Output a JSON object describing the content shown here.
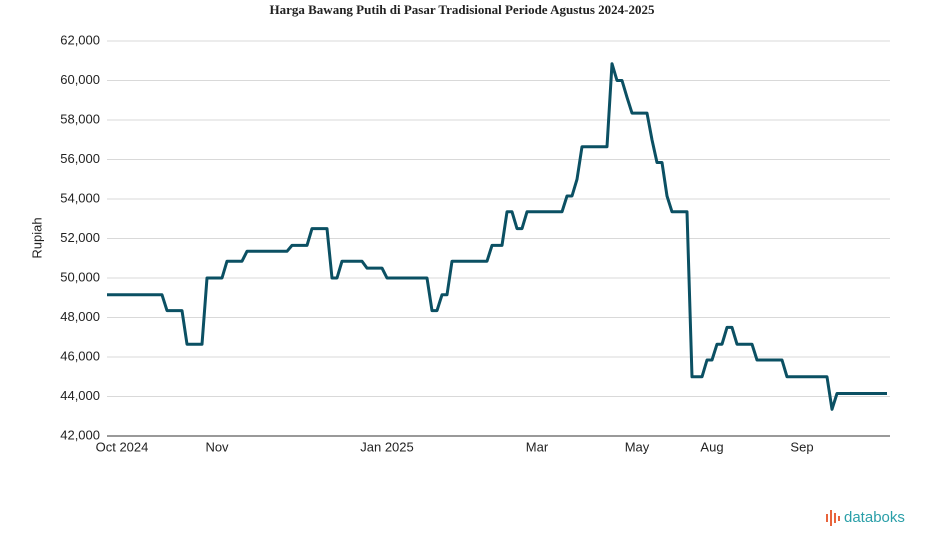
{
  "chart_data": {
    "type": "line",
    "title": "Harga Bawang Putih di Pasar Tradisional Periode Agustus 2024-2025",
    "y_label": "Rupiah",
    "categories": [
      null,
      null,
      null,
      "Oct 2024",
      null,
      null,
      null,
      null,
      null,
      null,
      null,
      null,
      null,
      null,
      null,
      null,
      null,
      null,
      null,
      null,
      null,
      null,
      "Nov",
      null,
      null,
      null,
      null,
      null,
      null,
      null,
      null,
      null,
      null,
      null,
      null,
      null,
      null,
      null,
      null,
      null,
      null,
      null,
      null,
      null,
      null,
      null,
      null,
      null,
      null,
      null,
      null,
      null,
      null,
      null,
      null,
      null,
      "Jan 2025",
      null,
      null,
      null,
      null,
      null,
      null,
      null,
      null,
      null,
      null,
      null,
      null,
      null,
      null,
      null,
      null,
      null,
      null,
      null,
      null,
      null,
      null,
      null,
      null,
      null,
      null,
      null,
      null,
      null,
      "Mar",
      null,
      null,
      null,
      null,
      null,
      null,
      null,
      null,
      null,
      null,
      null,
      null,
      null,
      null,
      null,
      null,
      null,
      null,
      null,
      "May",
      null,
      null,
      null,
      null,
      null,
      null,
      null,
      null,
      null,
      null,
      null,
      null,
      null,
      null,
      "Aug",
      null,
      null,
      null,
      null,
      null,
      null,
      null,
      null,
      null,
      null,
      null,
      null,
      null,
      null,
      null,
      null,
      null,
      "Sep",
      null,
      null,
      null,
      null,
      null,
      null,
      null,
      null,
      null,
      null,
      null,
      null,
      null,
      null,
      null,
      null,
      null
    ],
    "series": [
      {
        "name": "Rupiah",
        "color": "#0b5063",
        "values": [
          49150,
          49150,
          49150,
          49150,
          49150,
          49150,
          49150,
          49150,
          49150,
          49150,
          49150,
          49150,
          48350,
          48350,
          48350,
          48350,
          46650,
          46650,
          46650,
          46650,
          50000,
          50000,
          50000,
          50000,
          50850,
          50850,
          50850,
          50850,
          51350,
          51350,
          51350,
          51350,
          51350,
          51350,
          51350,
          51350,
          51350,
          51650,
          51650,
          51650,
          51650,
          52500,
          52500,
          52500,
          52500,
          50000,
          50000,
          50850,
          50850,
          50850,
          50850,
          50850,
          50500,
          50500,
          50500,
          50500,
          50000,
          50000,
          50000,
          50000,
          50000,
          50000,
          50000,
          50000,
          50000,
          48350,
          48350,
          49150,
          49150,
          50850,
          50850,
          50850,
          50850,
          50850,
          50850,
          50850,
          50850,
          51650,
          51650,
          51650,
          53350,
          53350,
          52500,
          52500,
          53350,
          53350,
          53350,
          53350,
          53350,
          53350,
          53350,
          53350,
          54150,
          54150,
          55000,
          56650,
          56650,
          56650,
          56650,
          56650,
          56650,
          60850,
          60000,
          60000,
          59150,
          58350,
          58350,
          58350,
          58350,
          57000,
          55850,
          55850,
          54150,
          53350,
          53350,
          53350,
          53350,
          45000,
          45000,
          45000,
          45850,
          45850,
          46650,
          46650,
          47500,
          47500,
          46650,
          46650,
          46650,
          46650,
          45850,
          45850,
          45850,
          45850,
          45850,
          45850,
          45000,
          45000,
          45000,
          45000,
          45000,
          45000,
          45000,
          45000,
          45000,
          43350,
          44150,
          44150,
          44150,
          44150,
          44150,
          44150,
          44150,
          44150,
          44150,
          44150,
          44150
        ]
      }
    ],
    "ylim": [
      42000,
      62000
    ],
    "yticks": [
      {
        "value": 42000,
        "label": "42,000"
      },
      {
        "value": 44000,
        "label": "44,000"
      },
      {
        "value": 46000,
        "label": "46,000"
      },
      {
        "value": 48000,
        "label": "48,000"
      },
      {
        "value": 50000,
        "label": "50,000"
      },
      {
        "value": 52000,
        "label": "52,000"
      },
      {
        "value": 54000,
        "label": "54,000"
      },
      {
        "value": 56000,
        "label": "56,000"
      },
      {
        "value": 58000,
        "label": "58,000"
      },
      {
        "value": 60000,
        "label": "60,000"
      },
      {
        "value": 62000,
        "label": "62,000"
      }
    ],
    "grid": true
  },
  "brand": "databoks"
}
